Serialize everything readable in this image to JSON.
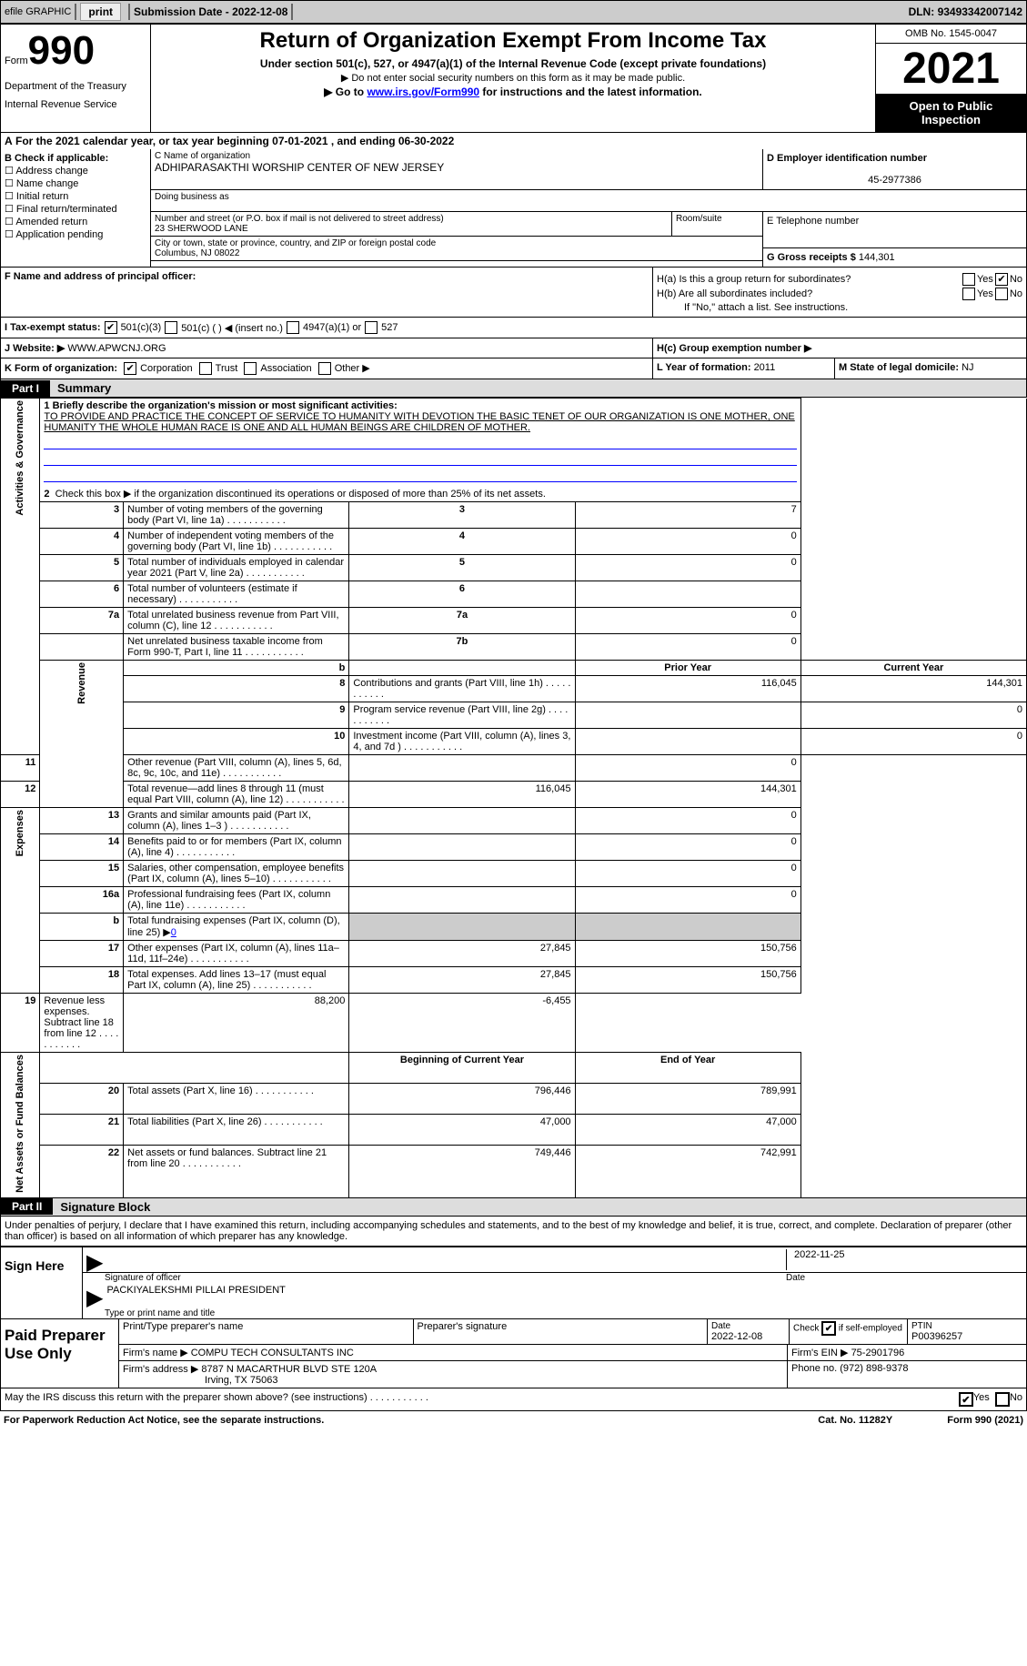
{
  "topbar": {
    "efile": "efile GRAPHIC",
    "print": "print",
    "sub_date_label": "Submission Date - ",
    "sub_date": "2022-12-08",
    "dln_label": "DLN: ",
    "dln": "93493342007142"
  },
  "header": {
    "form_word": "Form",
    "form_num": "990",
    "dept": "Department of the Treasury",
    "irs": "Internal Revenue Service",
    "title": "Return of Organization Exempt From Income Tax",
    "sub1": "Under section 501(c), 527, or 4947(a)(1) of the Internal Revenue Code (except private foundations)",
    "sub2": "▶ Do not enter social security numbers on this form as it may be made public.",
    "sub3_pre": "▶ Go to ",
    "sub3_link": "www.irs.gov/Form990",
    "sub3_post": " for instructions and the latest information.",
    "omb": "OMB No. 1545-0047",
    "year": "2021",
    "inspect": "Open to Public Inspection"
  },
  "row_a": {
    "label": "A",
    "text": "For the 2021 calendar year, or tax year beginning ",
    "begin": "07-01-2021",
    "mid": "     , and ending ",
    "end": "06-30-2022"
  },
  "col_b": {
    "hdr": "B Check if applicable:",
    "opts": [
      "Address change",
      "Name change",
      "Initial return",
      "Final return/terminated",
      "Amended return",
      "Application pending"
    ]
  },
  "col_c": {
    "name_hdr": "C Name of organization",
    "name": "ADHIPARASAKTHI WORSHIP CENTER OF NEW JERSEY",
    "dba": "Doing business as",
    "street_hdr": "Number and street (or P.O. box if mail is not delivered to street address)",
    "street": "23 SHERWOOD LANE",
    "room_hdr": "Room/suite",
    "city_hdr": "City or town, state or province, country, and ZIP or foreign postal code",
    "city": "Columbus, NJ  08022"
  },
  "col_d": {
    "hdr": "D Employer identification number",
    "val": "45-2977386"
  },
  "col_e": {
    "hdr": "E Telephone number",
    "gross_hdr": "G Gross receipts $ ",
    "gross": "144,301"
  },
  "row_f": {
    "hdr": "F Name and address of principal officer:"
  },
  "row_h": {
    "ha": "H(a)  Is this a group return for subordinates?",
    "hb": "H(b)  Are all subordinates included?",
    "hb_note": "If \"No,\" attach a list. See instructions.",
    "hc": "H(c)  Group exemption number ▶",
    "yes": "Yes",
    "no": "No"
  },
  "row_i": {
    "hdr": "I    Tax-exempt status:",
    "c3": "501(c)(3)",
    "c": "501(c) (   ) ◀ (insert no.)",
    "a1": "4947(a)(1) or",
    "527": "527"
  },
  "row_j": {
    "hdr": "J   Website: ▶ ",
    "val": "WWW.APWCNJ.ORG"
  },
  "row_k": {
    "hdr": "K Form of organization:",
    "corp": "Corporation",
    "trust": "Trust",
    "assoc": "Association",
    "other": "Other ▶",
    "l": "L Year of formation: ",
    "l_val": "2011",
    "m": "M State of legal domicile: ",
    "m_val": "NJ"
  },
  "part1": {
    "bar": "Part I",
    "title": "Summary",
    "l1_hdr": "1  Briefly describe the organization's mission or most significant activities:",
    "l1_text": "TO PROVIDE AND PRACTICE THE CONCEPT OF SERVICE TO HUMANITY WITH DEVOTION THE BASIC TENET OF OUR ORGANIZATION IS ONE MOTHER, ONE HUMANITY THE WHOLE HUMAN RACE IS ONE AND ALL HUMAN BEINGS ARE CHILDREN OF MOTHER.",
    "l2": "Check this box ▶       if the organization discontinued its operations or disposed of more than 25% of its net assets.",
    "rows_gov": [
      {
        "n": "3",
        "t": "Number of voting members of the governing body (Part VI, line 1a)",
        "b": "3",
        "v": "7"
      },
      {
        "n": "4",
        "t": "Number of independent voting members of the governing body (Part VI, line 1b)",
        "b": "4",
        "v": "0"
      },
      {
        "n": "5",
        "t": "Total number of individuals employed in calendar year 2021 (Part V, line 2a)",
        "b": "5",
        "v": "0"
      },
      {
        "n": "6",
        "t": "Total number of volunteers (estimate if necessary)",
        "b": "6",
        "v": ""
      },
      {
        "n": "7a",
        "t": "Total unrelated business revenue from Part VIII, column (C), line 12",
        "b": "7a",
        "v": "0"
      },
      {
        "n": "",
        "t": "Net unrelated business taxable income from Form 990-T, Part I, line 11",
        "b": "7b",
        "v": "0"
      }
    ],
    "py_hdr": "Prior Year",
    "cy_hdr": "Current Year",
    "rows_rev": [
      {
        "n": "8",
        "t": "Contributions and grants (Part VIII, line 1h)",
        "py": "116,045",
        "cy": "144,301"
      },
      {
        "n": "9",
        "t": "Program service revenue (Part VIII, line 2g)",
        "py": "",
        "cy": "0"
      },
      {
        "n": "10",
        "t": "Investment income (Part VIII, column (A), lines 3, 4, and 7d )",
        "py": "",
        "cy": "0"
      },
      {
        "n": "11",
        "t": "Other revenue (Part VIII, column (A), lines 5, 6d, 8c, 9c, 10c, and 11e)",
        "py": "",
        "cy": "0"
      },
      {
        "n": "12",
        "t": "Total revenue—add lines 8 through 11 (must equal Part VIII, column (A), line 12)",
        "py": "116,045",
        "cy": "144,301"
      }
    ],
    "rows_exp": [
      {
        "n": "13",
        "t": "Grants and similar amounts paid (Part IX, column (A), lines 1–3 )",
        "py": "",
        "cy": "0"
      },
      {
        "n": "14",
        "t": "Benefits paid to or for members (Part IX, column (A), line 4)",
        "py": "",
        "cy": "0"
      },
      {
        "n": "15",
        "t": "Salaries, other compensation, employee benefits (Part IX, column (A), lines 5–10)",
        "py": "",
        "cy": "0"
      },
      {
        "n": "16a",
        "t": "Professional fundraising fees (Part IX, column (A), line 11e)",
        "py": "",
        "cy": "0"
      }
    ],
    "row_b": {
      "n": "b",
      "t": "Total fundraising expenses (Part IX, column (D), line 25) ▶",
      "v": "0"
    },
    "rows_exp2": [
      {
        "n": "17",
        "t": "Other expenses (Part IX, column (A), lines 11a–11d, 11f–24e)",
        "py": "27,845",
        "cy": "150,756"
      },
      {
        "n": "18",
        "t": "Total expenses. Add lines 13–17 (must equal Part IX, column (A), line 25)",
        "py": "27,845",
        "cy": "150,756"
      },
      {
        "n": "19",
        "t": "Revenue less expenses. Subtract line 18 from line 12",
        "py": "88,200",
        "cy": "-6,455"
      }
    ],
    "boy_hdr": "Beginning of Current Year",
    "eoy_hdr": "End of Year",
    "rows_net": [
      {
        "n": "20",
        "t": "Total assets (Part X, line 16)",
        "py": "796,446",
        "cy": "789,991"
      },
      {
        "n": "21",
        "t": "Total liabilities (Part X, line 26)",
        "py": "47,000",
        "cy": "47,000"
      },
      {
        "n": "22",
        "t": "Net assets or fund balances. Subtract line 21 from line 20",
        "py": "749,446",
        "cy": "742,991"
      }
    ],
    "side_gov": "Activities & Governance",
    "side_rev": "Revenue",
    "side_exp": "Expenses",
    "side_net": "Net Assets or Fund Balances"
  },
  "part2": {
    "bar": "Part II",
    "title": "Signature Block",
    "decl": "Under penalties of perjury, I declare that I have examined this return, including accompanying schedules and statements, and to the best of my knowledge and belief, it is true, correct, and complete. Declaration of preparer (other than officer) is based on all information of which preparer has any knowledge.",
    "sign_hdr": "Sign Here",
    "sig_officer": "Signature of officer",
    "date_lbl": "Date",
    "sig_date": "2022-11-25",
    "name_title": "PACKIYALEKSHMI PILLAI   PRESIDENT",
    "name_title_lbl": "Type or print name and title",
    "prep_hdr": "Paid Preparer Use Only",
    "prep_name_lbl": "Print/Type preparer's name",
    "prep_sig_lbl": "Preparer's signature",
    "prep_date_lbl": "Date",
    "prep_date": "2022-12-08",
    "check_lbl": "Check        if self-employed",
    "ptin_lbl": "PTIN",
    "ptin": "P00396257",
    "firm_name_lbl": "Firm's name     ▶ ",
    "firm_name": "COMPU TECH CONSULTANTS INC",
    "firm_ein_lbl": "Firm's EIN ▶ ",
    "firm_ein": "75-2901796",
    "firm_addr_lbl": "Firm's address ▶ ",
    "firm_addr1": "8787 N MACARTHUR BLVD STE 120A",
    "firm_addr2": "Irving, TX  75063",
    "phone_lbl": "Phone no. ",
    "phone": "(972) 898-9378",
    "discuss": "May the IRS discuss this return with the preparer shown above? (see instructions)",
    "yes": "Yes",
    "no": "No"
  },
  "footer": {
    "left": "For Paperwork Reduction Act Notice, see the separate instructions.",
    "mid": "Cat. No. 11282Y",
    "right": "Form 990 (2021)"
  }
}
